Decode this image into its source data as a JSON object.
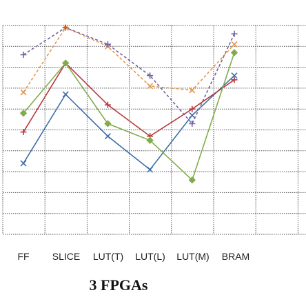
{
  "chart_data": {
    "type": "line",
    "title": "3 FPGAs",
    "xlabel": "",
    "ylabel": "",
    "categories": [
      "FF",
      "SLICE",
      "LUT(T)",
      "LUT(L)",
      "LUT(M)",
      "BRAM"
    ],
    "ylim": [
      0,
      10
    ],
    "grid": true,
    "legend": "none",
    "series": [
      {
        "color": "#3d6ea8",
        "marker": "x",
        "dash": "solid",
        "values": [
          3.4,
          6.7,
          4.7,
          3.1,
          5.7,
          7.6
        ]
      },
      {
        "color": "#b8383c",
        "marker": "+",
        "dash": "solid",
        "values": [
          4.9,
          8.2,
          6.2,
          4.7,
          6.0,
          7.4
        ]
      },
      {
        "color": "#82ac4c",
        "marker": "diamond",
        "dash": "solid",
        "values": [
          5.8,
          8.2,
          5.3,
          4.5,
          2.6,
          8.7
        ]
      },
      {
        "color": "#e8954a",
        "marker": "x",
        "dash": "dashed",
        "values": [
          6.8,
          9.9,
          9.0,
          7.1,
          6.9,
          9.1
        ]
      },
      {
        "color": "#7361a0",
        "marker": "+",
        "dash": "dashed",
        "values": [
          8.6,
          9.9,
          9.1,
          7.6,
          5.3,
          9.6
        ]
      }
    ]
  }
}
